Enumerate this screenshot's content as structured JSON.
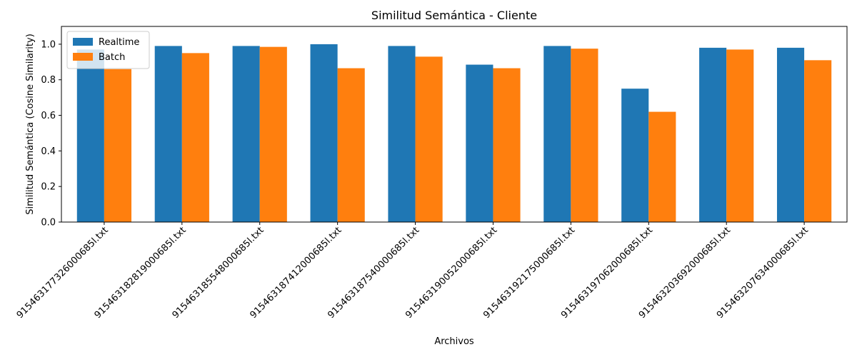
{
  "chart_data": {
    "type": "bar",
    "title": "Similitud Semántica - Cliente",
    "xlabel": "Archivos",
    "ylabel": "Similitud Semántica (Cosine Similarity)",
    "categories": [
      "915463177326000685l.txt",
      "915463182819000685l.txt",
      "915463185548000685l.txt",
      "915463187412000685l.txt",
      "915463187540000685l.txt",
      "915463190052000685l.txt",
      "915463192175000685l.txt",
      "915463197062000685l.txt",
      "915463203692000685l.txt",
      "915463207634000685l.txt"
    ],
    "series": [
      {
        "name": "Realtime",
        "color": "#1f77b4",
        "values": [
          0.97,
          0.99,
          0.99,
          1.0,
          0.99,
          0.885,
          0.99,
          0.75,
          0.98,
          0.98
        ]
      },
      {
        "name": "Batch",
        "color": "#ff7f0e",
        "values": [
          0.86,
          0.95,
          0.985,
          0.865,
          0.93,
          0.865,
          0.975,
          0.62,
          0.97,
          0.91
        ]
      }
    ],
    "ylim": [
      0,
      1.1
    ],
    "yticks": [
      "0.0",
      "0.2",
      "0.4",
      "0.6",
      "0.8",
      "1.0"
    ],
    "grid": false,
    "legend_position": "top-left"
  }
}
